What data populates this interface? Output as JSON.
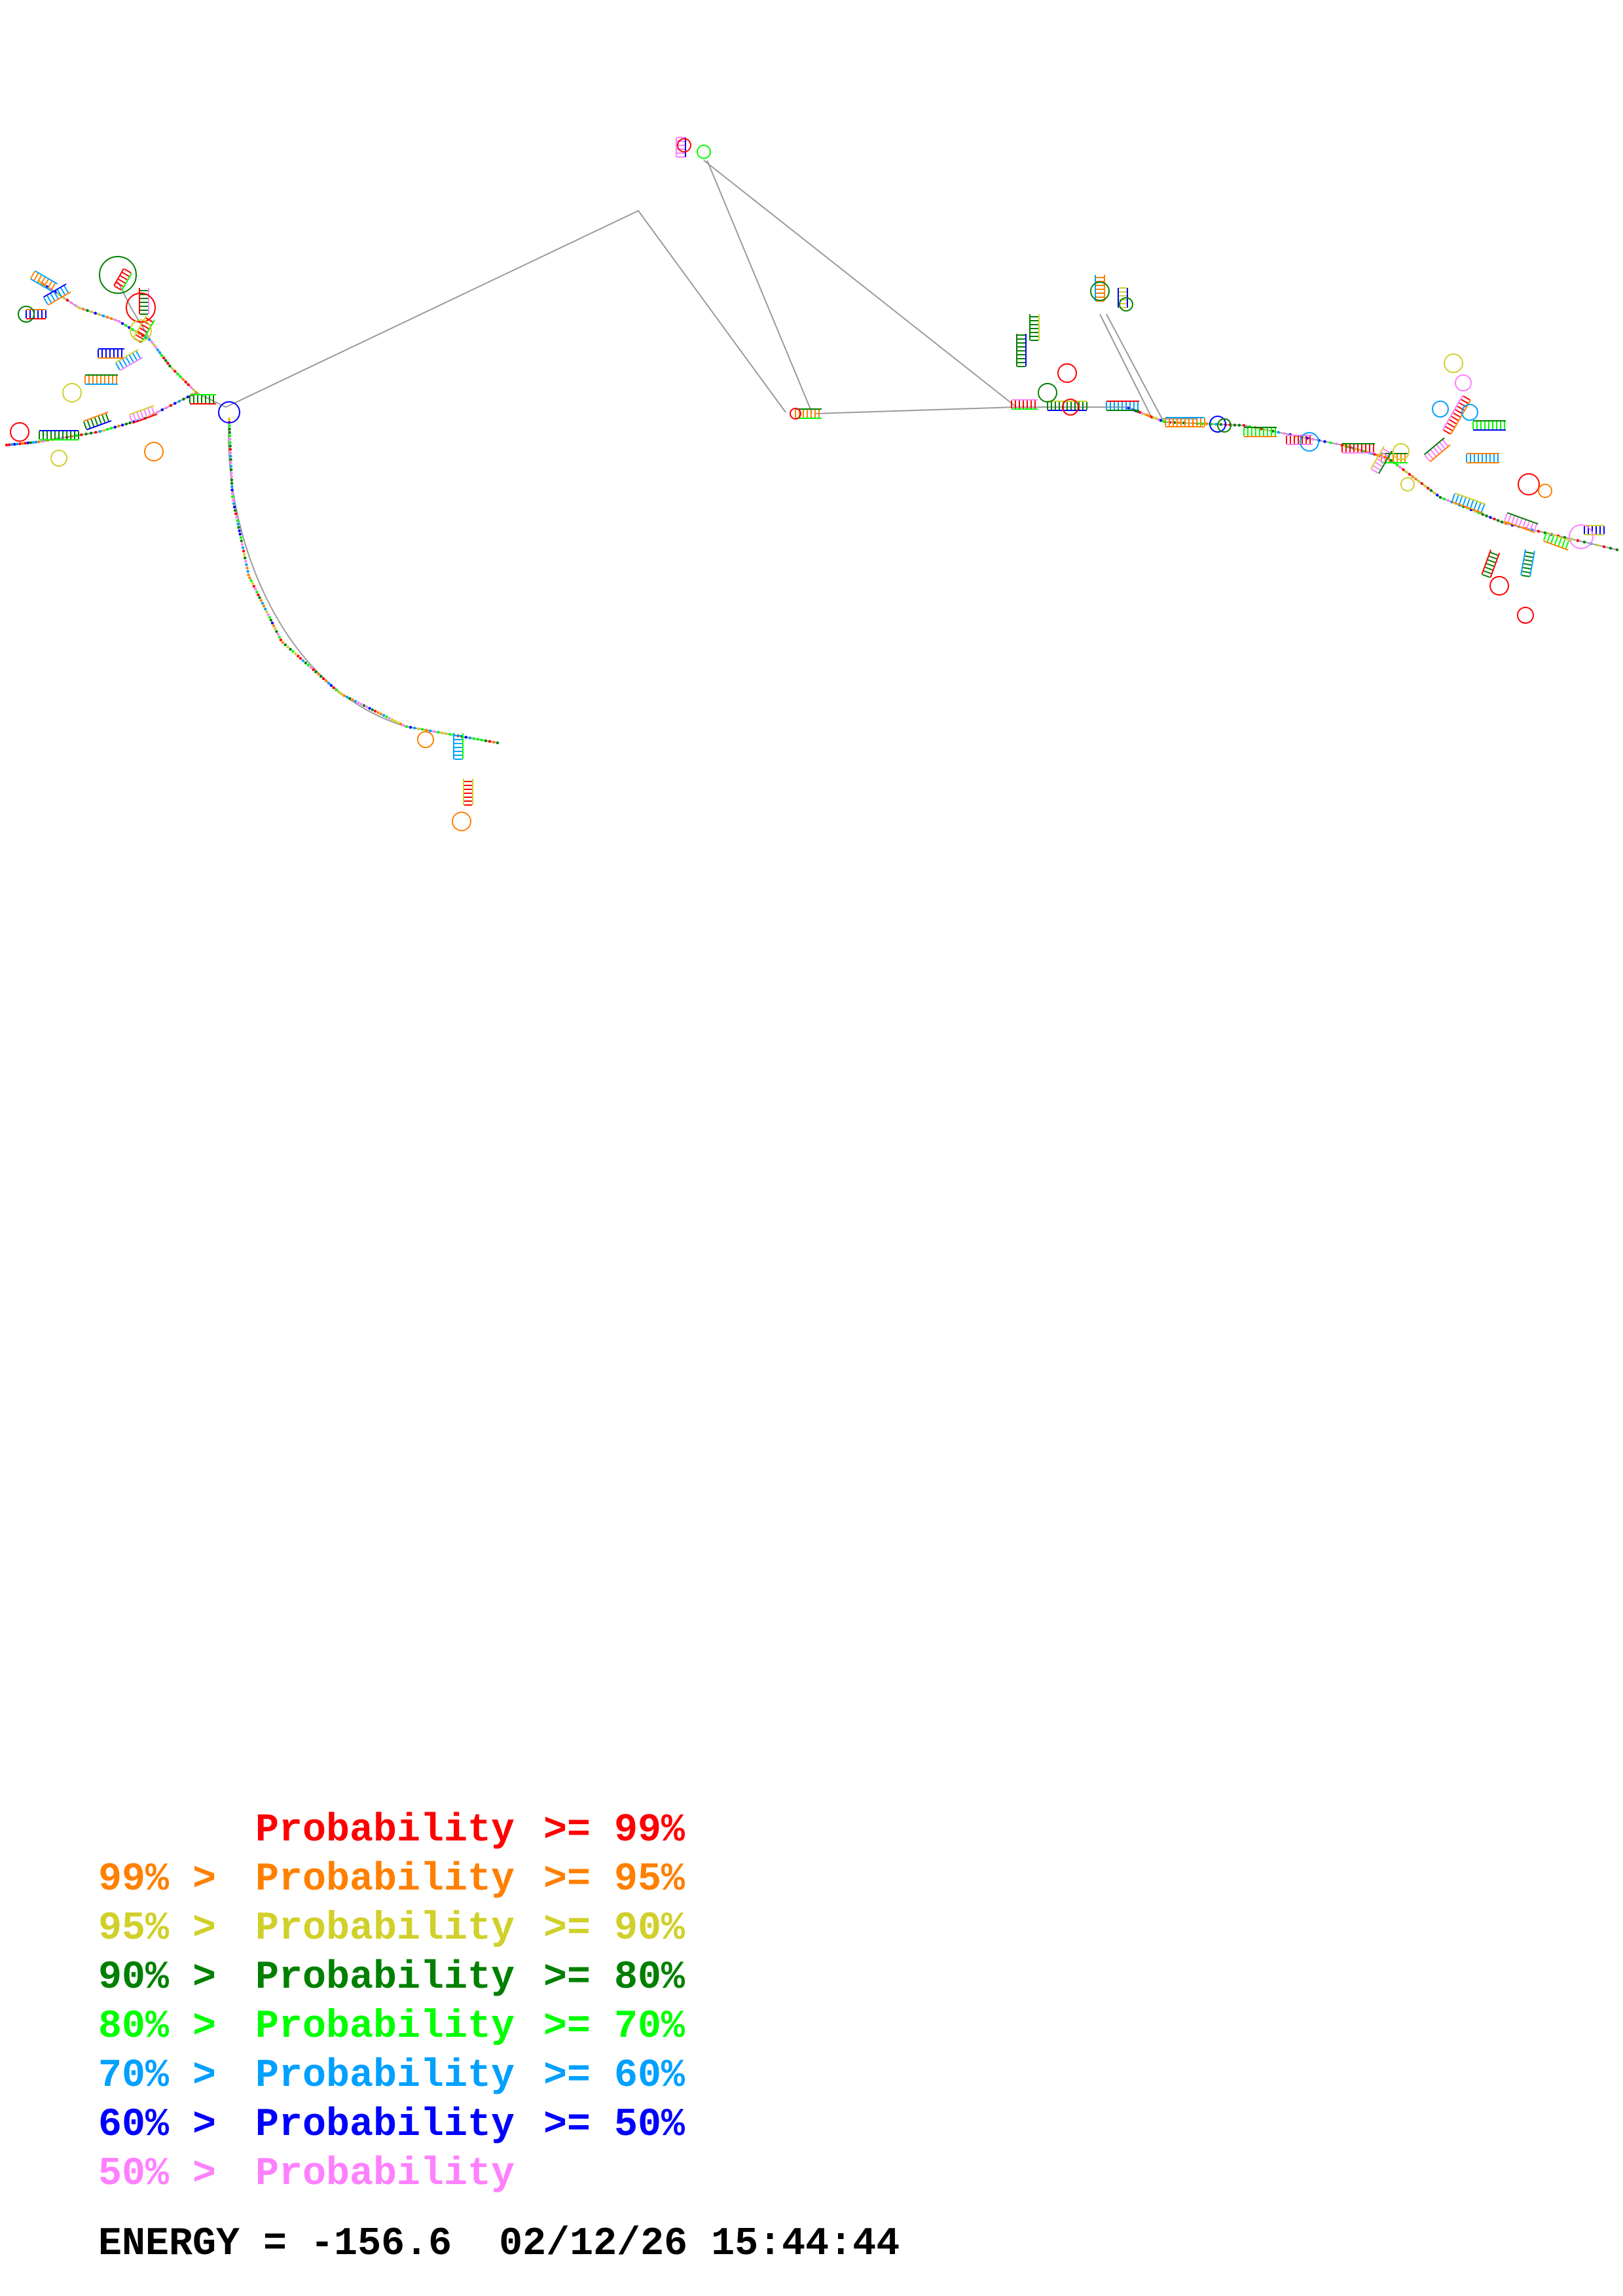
{
  "legend": [
    {
      "color": "#ff0000",
      "left": "",
      "mid": "Probability",
      "right": ">= 99%"
    },
    {
      "color": "#ff8000",
      "left": "99% >",
      "mid": "Probability",
      "right": ">= 95%"
    },
    {
      "color": "#d0d02a",
      "left": "95% >",
      "mid": "Probability",
      "right": ">= 90%"
    },
    {
      "color": "#008000",
      "left": "90% >",
      "mid": "Probability",
      "right": ">= 80%"
    },
    {
      "color": "#00ff00",
      "left": "80% >",
      "mid": "Probability",
      "right": ">= 70%"
    },
    {
      "color": "#00a0ff",
      "left": "70% >",
      "mid": "Probability",
      "right": ">= 60%"
    },
    {
      "color": "#0000ff",
      "left": "60% >",
      "mid": "Probability",
      "right": ">= 50%"
    },
    {
      "color": "#ff80ff",
      "left": "50% >",
      "mid": "Probability",
      "right": ""
    }
  ],
  "energy": {
    "label": "ENERGY = -156.6",
    "timestamp": "02/12/26 15:44:44"
  },
  "structure": {
    "description_colors": [
      "#ff0000",
      "#ff8000",
      "#d0d02a",
      "#008000",
      "#00ff00",
      "#00a0ff",
      "#0000ff",
      "#ff80ff"
    ]
  }
}
